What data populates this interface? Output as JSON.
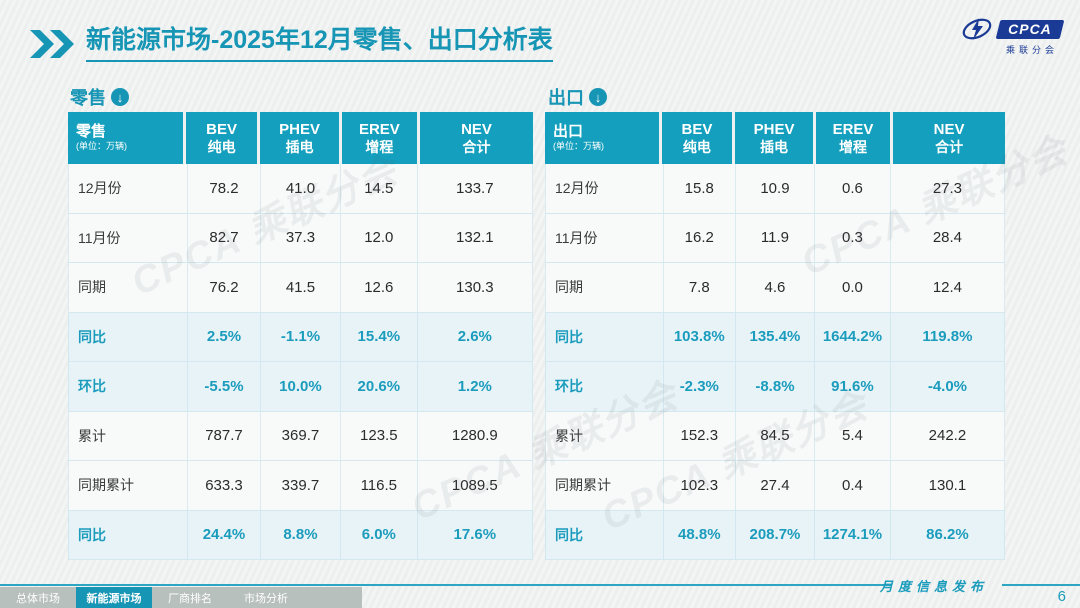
{
  "header": {
    "title_bold": "新能源市场",
    "title_rest": "-2025年12月零售、出口分析表"
  },
  "logo": {
    "text": "CPCA",
    "subtext": "乘联分会"
  },
  "colors": {
    "accent": "#1795b5",
    "header_teal": "#139fbd",
    "navy": "#1a3a96"
  },
  "watermark": "CPCA 乘联分会",
  "tables": [
    {
      "section_label": "零售",
      "corner_label": "零售",
      "unit_label": "(单位：万辆)",
      "columns": [
        {
          "en": "BEV",
          "cn": "纯电"
        },
        {
          "en": "PHEV",
          "cn": "插电"
        },
        {
          "en": "EREV",
          "cn": "增程"
        },
        {
          "en": "NEV",
          "cn": "合计"
        }
      ],
      "rows": [
        {
          "label": "12月份",
          "type": "data",
          "values": [
            "78.2",
            "41.0",
            "14.5",
            "133.7"
          ]
        },
        {
          "label": "11月份",
          "type": "data",
          "values": [
            "82.7",
            "37.3",
            "12.0",
            "132.1"
          ]
        },
        {
          "label": "同期",
          "type": "data",
          "values": [
            "76.2",
            "41.5",
            "12.6",
            "130.3"
          ]
        },
        {
          "label": "同比",
          "type": "pct",
          "values": [
            "2.5%",
            "-1.1%",
            "15.4%",
            "2.6%"
          ]
        },
        {
          "label": "环比",
          "type": "pct",
          "values": [
            "-5.5%",
            "10.0%",
            "20.6%",
            "1.2%"
          ]
        },
        {
          "label": "累计",
          "type": "data",
          "values": [
            "787.7",
            "369.7",
            "123.5",
            "1280.9"
          ]
        },
        {
          "label": "同期累计",
          "type": "data",
          "values": [
            "633.3",
            "339.7",
            "116.5",
            "1089.5"
          ]
        },
        {
          "label": "同比",
          "type": "pct",
          "values": [
            "24.4%",
            "8.8%",
            "6.0%",
            "17.6%"
          ]
        }
      ]
    },
    {
      "section_label": "出口",
      "corner_label": "出口",
      "unit_label": "(单位：万辆)",
      "columns": [
        {
          "en": "BEV",
          "cn": "纯电"
        },
        {
          "en": "PHEV",
          "cn": "插电"
        },
        {
          "en": "EREV",
          "cn": "增程"
        },
        {
          "en": "NEV",
          "cn": "合计"
        }
      ],
      "rows": [
        {
          "label": "12月份",
          "type": "data",
          "values": [
            "15.8",
            "10.9",
            "0.6",
            "27.3"
          ]
        },
        {
          "label": "11月份",
          "type": "data",
          "values": [
            "16.2",
            "11.9",
            "0.3",
            "28.4"
          ]
        },
        {
          "label": "同期",
          "type": "data",
          "values": [
            "7.8",
            "4.6",
            "0.0",
            "12.4"
          ]
        },
        {
          "label": "同比",
          "type": "pct",
          "values": [
            "103.8%",
            "135.4%",
            "1644.2%",
            "119.8%"
          ]
        },
        {
          "label": "环比",
          "type": "pct",
          "values": [
            "-2.3%",
            "-8.8%",
            "91.6%",
            "-4.0%"
          ]
        },
        {
          "label": "累计",
          "type": "data",
          "values": [
            "152.3",
            "84.5",
            "5.4",
            "242.2"
          ]
        },
        {
          "label": "同期累计",
          "type": "data",
          "values": [
            "102.3",
            "27.4",
            "0.4",
            "130.1"
          ]
        },
        {
          "label": "同比",
          "type": "pct",
          "values": [
            "48.8%",
            "208.7%",
            "1274.1%",
            "86.2%"
          ]
        }
      ]
    }
  ],
  "footer": {
    "ribbon_text": "月度信息发布",
    "page_number": "6"
  },
  "nav_tabs": [
    {
      "label": "总体市场",
      "active": false
    },
    {
      "label": "新能源市场",
      "active": true
    },
    {
      "label": "厂商排名",
      "active": false
    },
    {
      "label": "市场分析",
      "active": false
    }
  ]
}
